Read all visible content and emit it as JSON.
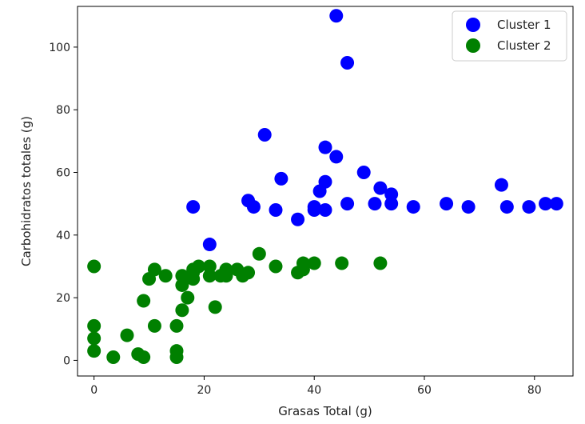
{
  "chart_data": {
    "type": "scatter",
    "xlabel": "Grasas Total (g)",
    "ylabel": "Carbohidratos totales (g)",
    "xlim": [
      -3,
      87
    ],
    "ylim": [
      -5,
      113
    ],
    "xticks": [
      0,
      20,
      40,
      60,
      80
    ],
    "yticks": [
      0,
      20,
      40,
      60,
      80,
      100
    ],
    "grid": false,
    "legend_position": "top-right",
    "series": [
      {
        "name": "Cluster 1",
        "color": "#0000ff",
        "points": [
          [
            44,
            110
          ],
          [
            46,
            95
          ],
          [
            31,
            72
          ],
          [
            42,
            68
          ],
          [
            44,
            65
          ],
          [
            49,
            60
          ],
          [
            34,
            58
          ],
          [
            42,
            57
          ],
          [
            74,
            56
          ],
          [
            52,
            55
          ],
          [
            41,
            54
          ],
          [
            54,
            53
          ],
          [
            28,
            51
          ],
          [
            46,
            50
          ],
          [
            51,
            50
          ],
          [
            54,
            50
          ],
          [
            64,
            50
          ],
          [
            82,
            50
          ],
          [
            84,
            50
          ],
          [
            18,
            49
          ],
          [
            29,
            49
          ],
          [
            58,
            49
          ],
          [
            68,
            49
          ],
          [
            75,
            49
          ],
          [
            79,
            49
          ],
          [
            40,
            49
          ],
          [
            33,
            48
          ],
          [
            40,
            48
          ],
          [
            42,
            48
          ],
          [
            37,
            45
          ],
          [
            21,
            37
          ]
        ]
      },
      {
        "name": "Cluster 2",
        "color": "#008000",
        "points": [
          [
            30,
            34
          ],
          [
            38,
            31
          ],
          [
            40,
            31
          ],
          [
            45,
            31
          ],
          [
            52,
            31
          ],
          [
            0,
            30
          ],
          [
            33,
            30
          ],
          [
            19,
            30
          ],
          [
            21,
            30
          ],
          [
            11,
            29
          ],
          [
            18,
            29
          ],
          [
            24,
            29
          ],
          [
            26,
            29
          ],
          [
            38,
            29
          ],
          [
            18,
            28
          ],
          [
            28,
            28
          ],
          [
            37,
            28
          ],
          [
            13,
            27
          ],
          [
            16,
            27
          ],
          [
            21,
            27
          ],
          [
            23,
            27
          ],
          [
            24,
            27
          ],
          [
            27,
            27
          ],
          [
            10,
            26
          ],
          [
            18,
            26
          ],
          [
            16,
            24
          ],
          [
            17,
            20
          ],
          [
            9,
            19
          ],
          [
            22,
            17
          ],
          [
            16,
            16
          ],
          [
            0,
            11
          ],
          [
            11,
            11
          ],
          [
            15,
            11
          ],
          [
            6,
            8
          ],
          [
            0,
            7
          ],
          [
            0,
            3
          ],
          [
            15,
            3
          ],
          [
            8,
            2
          ],
          [
            3.5,
            1
          ],
          [
            9,
            1
          ],
          [
            15,
            1
          ]
        ]
      }
    ]
  }
}
